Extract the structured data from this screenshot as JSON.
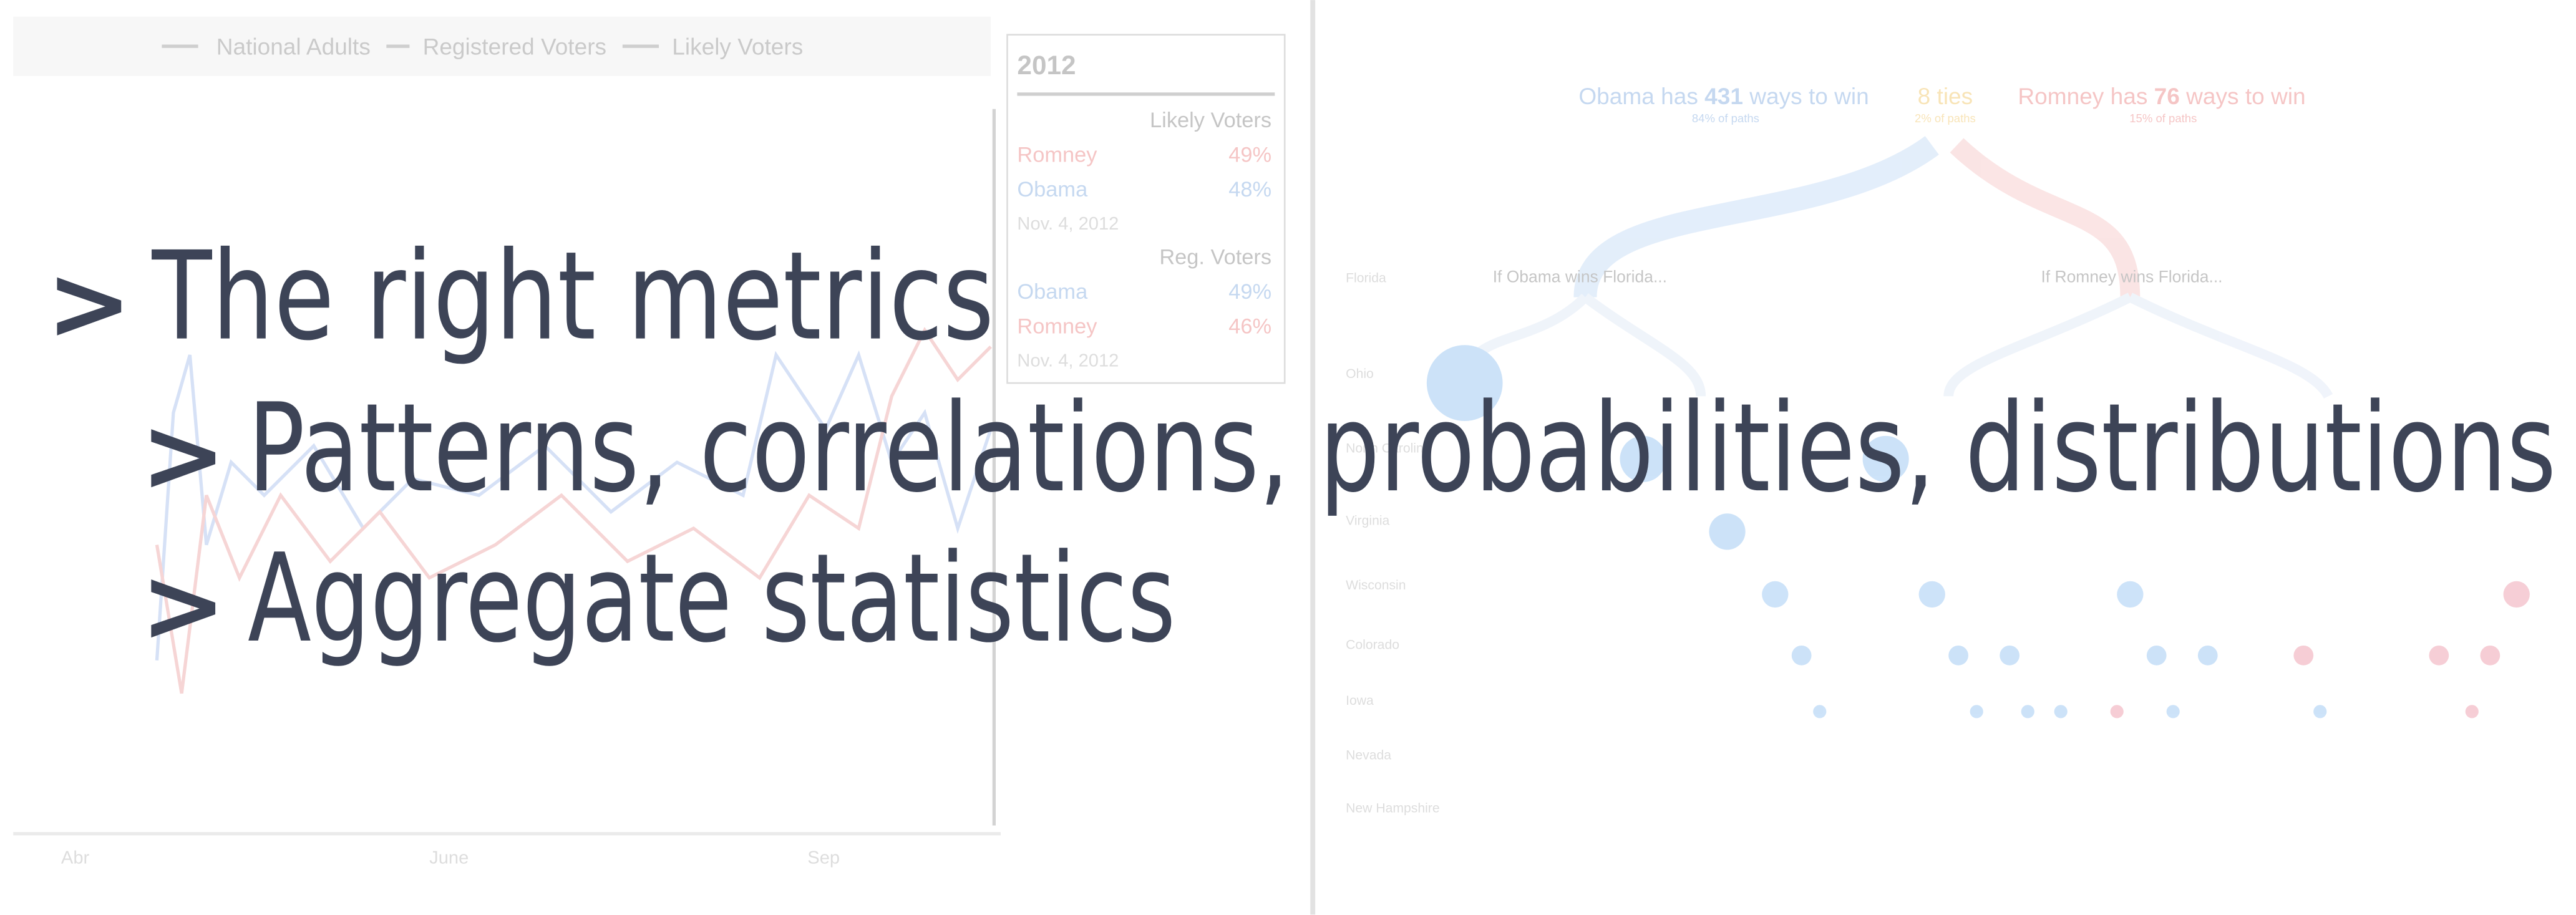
{
  "slide": {
    "bullets": [
      {
        "marker": ">",
        "text": "The right metrics"
      },
      {
        "marker": ">",
        "text": "Patterns, correlations, probabilities, distributions"
      },
      {
        "marker": ">",
        "text": "Aggregate statistics"
      }
    ]
  },
  "left_panel": {
    "legend": [
      "National Adults",
      "Registered Voters",
      "Likely Voters"
    ],
    "x_labels": [
      "Abr",
      "June",
      "Sep"
    ],
    "tooltip": {
      "year": "2012",
      "groups": [
        {
          "heading": "Likely Voters",
          "rows": [
            [
              "Romney",
              "49%"
            ],
            [
              "Obama",
              "48%"
            ]
          ],
          "date": "Nov. 4, 2012"
        },
        {
          "heading": "Reg. Voters",
          "rows": [
            [
              "Obama",
              "49%"
            ],
            [
              "Romney",
              "46%"
            ]
          ],
          "date": "Nov. 4, 2012"
        }
      ]
    }
  },
  "right_panel": {
    "header": {
      "obama": {
        "prefix": "Obama has",
        "count": "431",
        "suffix": "ways to win",
        "note": "84% of paths"
      },
      "ties": {
        "text": "8 ties",
        "note": "2% of paths"
      },
      "romney": {
        "prefix": "Romney has",
        "count": "76",
        "suffix": "ways to win",
        "note": "15% of paths"
      }
    },
    "branches": [
      "If Obama wins Florida...",
      "If Romney wins Florida..."
    ],
    "states": [
      "Florida",
      "Ohio",
      "North Carolina",
      "Virginia",
      "Wisconsin",
      "Colorado",
      "Iowa",
      "Nevada",
      "New Hampshire"
    ]
  }
}
